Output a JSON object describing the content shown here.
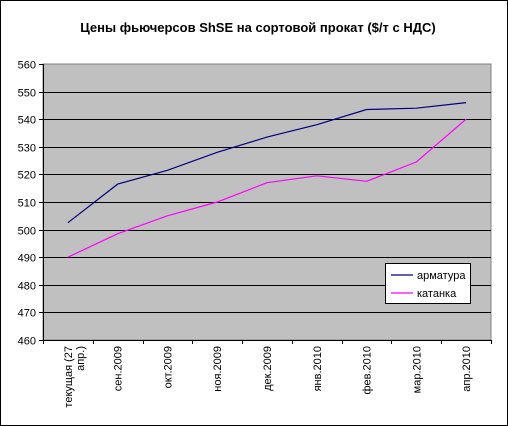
{
  "chart_data": {
    "type": "line",
    "title": "Цены фьючерсов ShSE на сортовой прокат ($/т с НДС)",
    "categories": [
      "текущая (27 апр.)",
      "сен.2009",
      "окт.2009",
      "ноя.2009",
      "дек.2009",
      "янв.2010",
      "фев.2010",
      "мар.2010",
      "апр.2010"
    ],
    "category_lines": [
      [
        "текущая (27",
        "апр.)"
      ],
      [
        "сен.2009"
      ],
      [
        "окт.2009"
      ],
      [
        "ноя.2009"
      ],
      [
        "дек.2009"
      ],
      [
        "янв.2010"
      ],
      [
        "фев.2010"
      ],
      [
        "мар.2010"
      ],
      [
        "апр.2010"
      ]
    ],
    "series": [
      {
        "name": "арматура",
        "color": "#000080",
        "values": [
          502.5,
          516.5,
          521.5,
          528,
          533.5,
          538,
          543.5,
          544,
          546
        ]
      },
      {
        "name": "катанка",
        "color": "#ff00ff",
        "values": [
          490,
          498.5,
          505,
          510,
          517,
          519.5,
          517.5,
          524.5,
          540
        ]
      }
    ],
    "ylim": [
      460,
      560
    ],
    "yticks": [
      460,
      470,
      480,
      490,
      500,
      510,
      520,
      530,
      540,
      550,
      560
    ],
    "grid": true,
    "plot_background": "#c0c0c0",
    "legend_position": "right"
  }
}
